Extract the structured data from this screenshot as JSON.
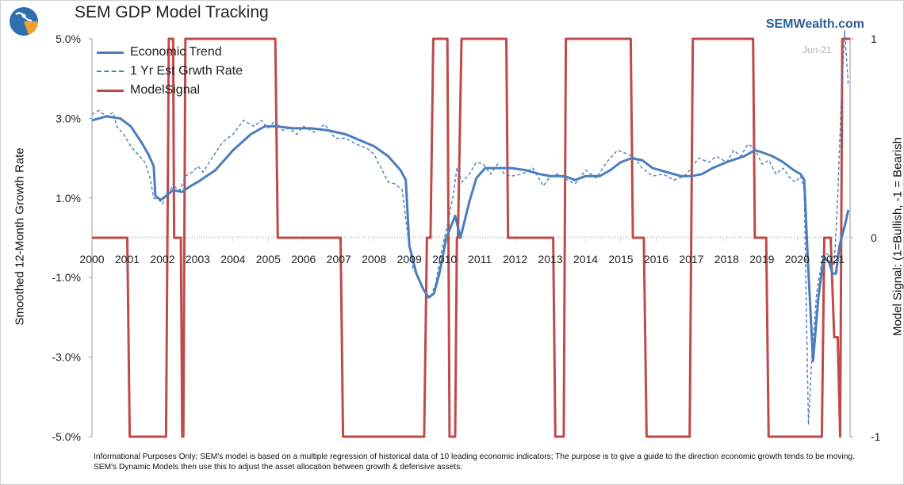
{
  "header": {
    "title": "SEM GDP Model Tracking",
    "site": "SEMWealth.com",
    "date_tag": "Jun-21"
  },
  "footnote": "Informational Purposes Only; SEM's model is based on a multiple regression of historical data of 10 leading economic indicators; The purpose is to give a guide to the direction economic growth tends to be moving. SEM's Dynamic Models then use this to adjust the asset allocation between growth & defensive assets.",
  "colors": {
    "trend": "#4a7ebb",
    "estimate": "#4a7ebb",
    "signal": "#be4b48"
  },
  "chart_data": {
    "type": "line",
    "title": "SEM GDP Model Tracking",
    "xlabel": "",
    "ylabel": "Smoothed 12-Month Growth Rate",
    "y2label": "Model Signal: (1=Bullish, -1 = Bearish",
    "ylim": [
      -5.0,
      5.0
    ],
    "y2lim": [
      -1,
      1
    ],
    "xlim": [
      2000.0,
      2021.5
    ],
    "y_ticks": [
      "5.0%",
      "3.0%",
      "1.0%",
      "-1.0%",
      "-3.0%",
      "-5.0%"
    ],
    "y_tick_values": [
      5,
      3,
      1,
      -1,
      -3,
      -5
    ],
    "y2_ticks": [
      "1",
      "0",
      "-1"
    ],
    "y2_tick_values": [
      1,
      0,
      -1
    ],
    "x_ticks": [
      "2000",
      "2001",
      "2002",
      "2003",
      "2004",
      "2005",
      "2006",
      "2007",
      "2008",
      "2009",
      "2010",
      "2011",
      "2012",
      "2013",
      "2014",
      "2015",
      "2016",
      "2017",
      "2018",
      "2019",
      "2020",
      "2021"
    ],
    "series": [
      {
        "name": "Economic Trend",
        "style": "solid",
        "axis": "left",
        "points": [
          [
            2000.0,
            2.95
          ],
          [
            2000.4,
            3.05
          ],
          [
            2000.8,
            3.0
          ],
          [
            2001.1,
            2.8
          ],
          [
            2001.4,
            2.4
          ],
          [
            2001.6,
            2.1
          ],
          [
            2001.75,
            1.8
          ],
          [
            2001.8,
            1.05
          ],
          [
            2001.95,
            0.95
          ],
          [
            2002.1,
            1.05
          ],
          [
            2002.3,
            1.2
          ],
          [
            2002.55,
            1.15
          ],
          [
            2002.8,
            1.3
          ],
          [
            2003.0,
            1.4
          ],
          [
            2003.5,
            1.7
          ],
          [
            2004.0,
            2.2
          ],
          [
            2004.5,
            2.6
          ],
          [
            2004.9,
            2.8
          ],
          [
            2005.2,
            2.8
          ],
          [
            2005.7,
            2.75
          ],
          [
            2006.2,
            2.75
          ],
          [
            2006.7,
            2.7
          ],
          [
            2007.2,
            2.6
          ],
          [
            2007.6,
            2.45
          ],
          [
            2008.0,
            2.3
          ],
          [
            2008.4,
            2.05
          ],
          [
            2008.75,
            1.7
          ],
          [
            2008.9,
            1.45
          ],
          [
            2009.0,
            -0.2
          ],
          [
            2009.2,
            -0.9
          ],
          [
            2009.4,
            -1.3
          ],
          [
            2009.55,
            -1.5
          ],
          [
            2009.7,
            -1.4
          ],
          [
            2009.85,
            -0.9
          ],
          [
            2010.05,
            0.0
          ],
          [
            2010.3,
            0.55
          ],
          [
            2010.45,
            0.0
          ],
          [
            2010.7,
            0.9
          ],
          [
            2010.9,
            1.5
          ],
          [
            2011.15,
            1.75
          ],
          [
            2011.5,
            1.75
          ],
          [
            2011.9,
            1.75
          ],
          [
            2012.3,
            1.7
          ],
          [
            2012.7,
            1.6
          ],
          [
            2013.0,
            1.55
          ],
          [
            2013.4,
            1.55
          ],
          [
            2013.7,
            1.45
          ],
          [
            2014.0,
            1.55
          ],
          [
            2014.4,
            1.55
          ],
          [
            2014.7,
            1.7
          ],
          [
            2015.0,
            1.9
          ],
          [
            2015.3,
            2.0
          ],
          [
            2015.6,
            1.95
          ],
          [
            2015.9,
            1.75
          ],
          [
            2016.3,
            1.65
          ],
          [
            2016.7,
            1.55
          ],
          [
            2017.0,
            1.55
          ],
          [
            2017.3,
            1.6
          ],
          [
            2017.6,
            1.75
          ],
          [
            2018.0,
            1.9
          ],
          [
            2018.5,
            2.05
          ],
          [
            2018.8,
            2.2
          ],
          [
            2019.0,
            2.15
          ],
          [
            2019.3,
            2.05
          ],
          [
            2019.6,
            1.9
          ],
          [
            2019.9,
            1.7
          ],
          [
            2020.1,
            1.6
          ],
          [
            2020.2,
            1.45
          ],
          [
            2020.3,
            -0.5
          ],
          [
            2020.45,
            -3.1
          ],
          [
            2020.6,
            -1.5
          ],
          [
            2020.75,
            -0.5
          ],
          [
            2020.9,
            -0.6
          ],
          [
            2021.0,
            -0.9
          ],
          [
            2021.1,
            -0.9
          ],
          [
            2021.2,
            -0.2
          ],
          [
            2021.35,
            0.3
          ],
          [
            2021.45,
            0.7
          ]
        ]
      },
      {
        "name": "1 Yr Est Grwth Rate",
        "style": "dashed",
        "axis": "left",
        "points": [
          [
            2000.0,
            3.1
          ],
          [
            2000.2,
            3.2
          ],
          [
            2000.4,
            3.05
          ],
          [
            2000.6,
            3.15
          ],
          [
            2000.7,
            2.8
          ],
          [
            2000.9,
            2.6
          ],
          [
            2001.1,
            2.3
          ],
          [
            2001.3,
            2.1
          ],
          [
            2001.5,
            1.9
          ],
          [
            2001.65,
            1.5
          ],
          [
            2001.75,
            1.0
          ],
          [
            2001.9,
            0.95
          ],
          [
            2002.0,
            0.85
          ],
          [
            2002.1,
            1.1
          ],
          [
            2002.3,
            1.3
          ],
          [
            2002.5,
            1.2
          ],
          [
            2002.65,
            1.55
          ],
          [
            2002.85,
            1.65
          ],
          [
            2003.0,
            1.8
          ],
          [
            2003.15,
            1.65
          ],
          [
            2003.4,
            2.0
          ],
          [
            2003.7,
            2.4
          ],
          [
            2004.0,
            2.6
          ],
          [
            2004.3,
            2.95
          ],
          [
            2004.6,
            2.8
          ],
          [
            2004.8,
            2.95
          ],
          [
            2005.0,
            2.75
          ],
          [
            2005.2,
            2.95
          ],
          [
            2005.4,
            2.7
          ],
          [
            2005.6,
            2.75
          ],
          [
            2005.8,
            2.6
          ],
          [
            2006.0,
            2.8
          ],
          [
            2006.3,
            2.65
          ],
          [
            2006.6,
            2.85
          ],
          [
            2006.9,
            2.5
          ],
          [
            2007.2,
            2.5
          ],
          [
            2007.5,
            2.35
          ],
          [
            2007.8,
            2.25
          ],
          [
            2008.0,
            2.1
          ],
          [
            2008.2,
            1.75
          ],
          [
            2008.4,
            1.4
          ],
          [
            2008.6,
            1.35
          ],
          [
            2008.8,
            1.2
          ],
          [
            2008.95,
            0.1
          ],
          [
            2009.1,
            -0.75
          ],
          [
            2009.3,
            -1.1
          ],
          [
            2009.45,
            -1.4
          ],
          [
            2009.6,
            -1.5
          ],
          [
            2009.75,
            -1.15
          ],
          [
            2009.9,
            -0.4
          ],
          [
            2010.1,
            0.4
          ],
          [
            2010.25,
            1.1
          ],
          [
            2010.35,
            1.75
          ],
          [
            2010.5,
            1.4
          ],
          [
            2010.7,
            1.6
          ],
          [
            2010.9,
            1.9
          ],
          [
            2011.1,
            1.85
          ],
          [
            2011.3,
            1.6
          ],
          [
            2011.5,
            1.85
          ],
          [
            2011.7,
            1.6
          ],
          [
            2011.9,
            1.55
          ],
          [
            2012.2,
            1.6
          ],
          [
            2012.5,
            1.75
          ],
          [
            2012.8,
            1.3
          ],
          [
            2013.0,
            1.55
          ],
          [
            2013.2,
            1.6
          ],
          [
            2013.5,
            1.45
          ],
          [
            2013.7,
            1.35
          ],
          [
            2014.0,
            1.7
          ],
          [
            2014.3,
            1.5
          ],
          [
            2014.6,
            1.9
          ],
          [
            2014.9,
            2.2
          ],
          [
            2015.2,
            2.1
          ],
          [
            2015.4,
            2.0
          ],
          [
            2015.6,
            1.75
          ],
          [
            2015.9,
            1.55
          ],
          [
            2016.2,
            1.6
          ],
          [
            2016.5,
            1.45
          ],
          [
            2016.8,
            1.55
          ],
          [
            2017.0,
            1.75
          ],
          [
            2017.2,
            2.0
          ],
          [
            2017.5,
            1.9
          ],
          [
            2017.7,
            2.05
          ],
          [
            2018.0,
            1.9
          ],
          [
            2018.2,
            2.2
          ],
          [
            2018.4,
            2.05
          ],
          [
            2018.6,
            2.35
          ],
          [
            2018.8,
            2.25
          ],
          [
            2019.0,
            1.85
          ],
          [
            2019.2,
            1.95
          ],
          [
            2019.4,
            1.6
          ],
          [
            2019.6,
            1.75
          ],
          [
            2019.8,
            1.5
          ],
          [
            2019.95,
            1.4
          ],
          [
            2020.1,
            1.55
          ],
          [
            2020.2,
            1.2
          ],
          [
            2020.32,
            -4.7
          ],
          [
            2020.42,
            -2.9
          ],
          [
            2020.55,
            -1.4
          ],
          [
            2020.7,
            -0.6
          ],
          [
            2020.85,
            -0.4
          ],
          [
            2020.95,
            -0.5
          ],
          [
            2021.05,
            -0.7
          ],
          [
            2021.15,
            1.0
          ],
          [
            2021.25,
            3.5
          ],
          [
            2021.35,
            5.2
          ],
          [
            2021.45,
            3.8
          ]
        ]
      },
      {
        "name": "ModelSignal",
        "style": "solid",
        "axis": "right",
        "points": [
          [
            2000.0,
            0
          ],
          [
            2001.0,
            0
          ],
          [
            2001.07,
            -1
          ],
          [
            2002.1,
            -1
          ],
          [
            2002.18,
            1
          ],
          [
            2002.3,
            1
          ],
          [
            2002.33,
            0
          ],
          [
            2002.52,
            0
          ],
          [
            2002.56,
            -1
          ],
          [
            2002.59,
            -1
          ],
          [
            2002.65,
            1
          ],
          [
            2005.2,
            1
          ],
          [
            2005.27,
            0
          ],
          [
            2007.05,
            0
          ],
          [
            2007.12,
            -1
          ],
          [
            2009.42,
            -1
          ],
          [
            2009.5,
            0
          ],
          [
            2009.6,
            0
          ],
          [
            2009.68,
            1
          ],
          [
            2010.08,
            1
          ],
          [
            2010.14,
            -1
          ],
          [
            2010.3,
            -1
          ],
          [
            2010.35,
            0
          ],
          [
            2010.38,
            0
          ],
          [
            2010.48,
            1
          ],
          [
            2011.75,
            1
          ],
          [
            2011.8,
            0
          ],
          [
            2013.08,
            0
          ],
          [
            2013.14,
            -1
          ],
          [
            2013.38,
            -1
          ],
          [
            2013.44,
            1
          ],
          [
            2015.28,
            1
          ],
          [
            2015.34,
            0
          ],
          [
            2015.65,
            0
          ],
          [
            2015.73,
            -1
          ],
          [
            2016.95,
            -1
          ],
          [
            2017.04,
            1
          ],
          [
            2018.75,
            1
          ],
          [
            2018.8,
            0
          ],
          [
            2019.12,
            0
          ],
          [
            2019.19,
            -1
          ],
          [
            2020.7,
            -1
          ],
          [
            2020.77,
            0
          ],
          [
            2020.95,
            0
          ],
          [
            2021.05,
            -0.5
          ],
          [
            2021.15,
            -0.5
          ],
          [
            2021.22,
            -1
          ],
          [
            2021.28,
            1
          ],
          [
            2021.5,
            1
          ]
        ]
      }
    ],
    "legend": [
      "Economic Trend",
      "1 Yr Est Grwth Rate",
      "ModelSignal"
    ],
    "legend_position": "top-left",
    "grid": false
  }
}
